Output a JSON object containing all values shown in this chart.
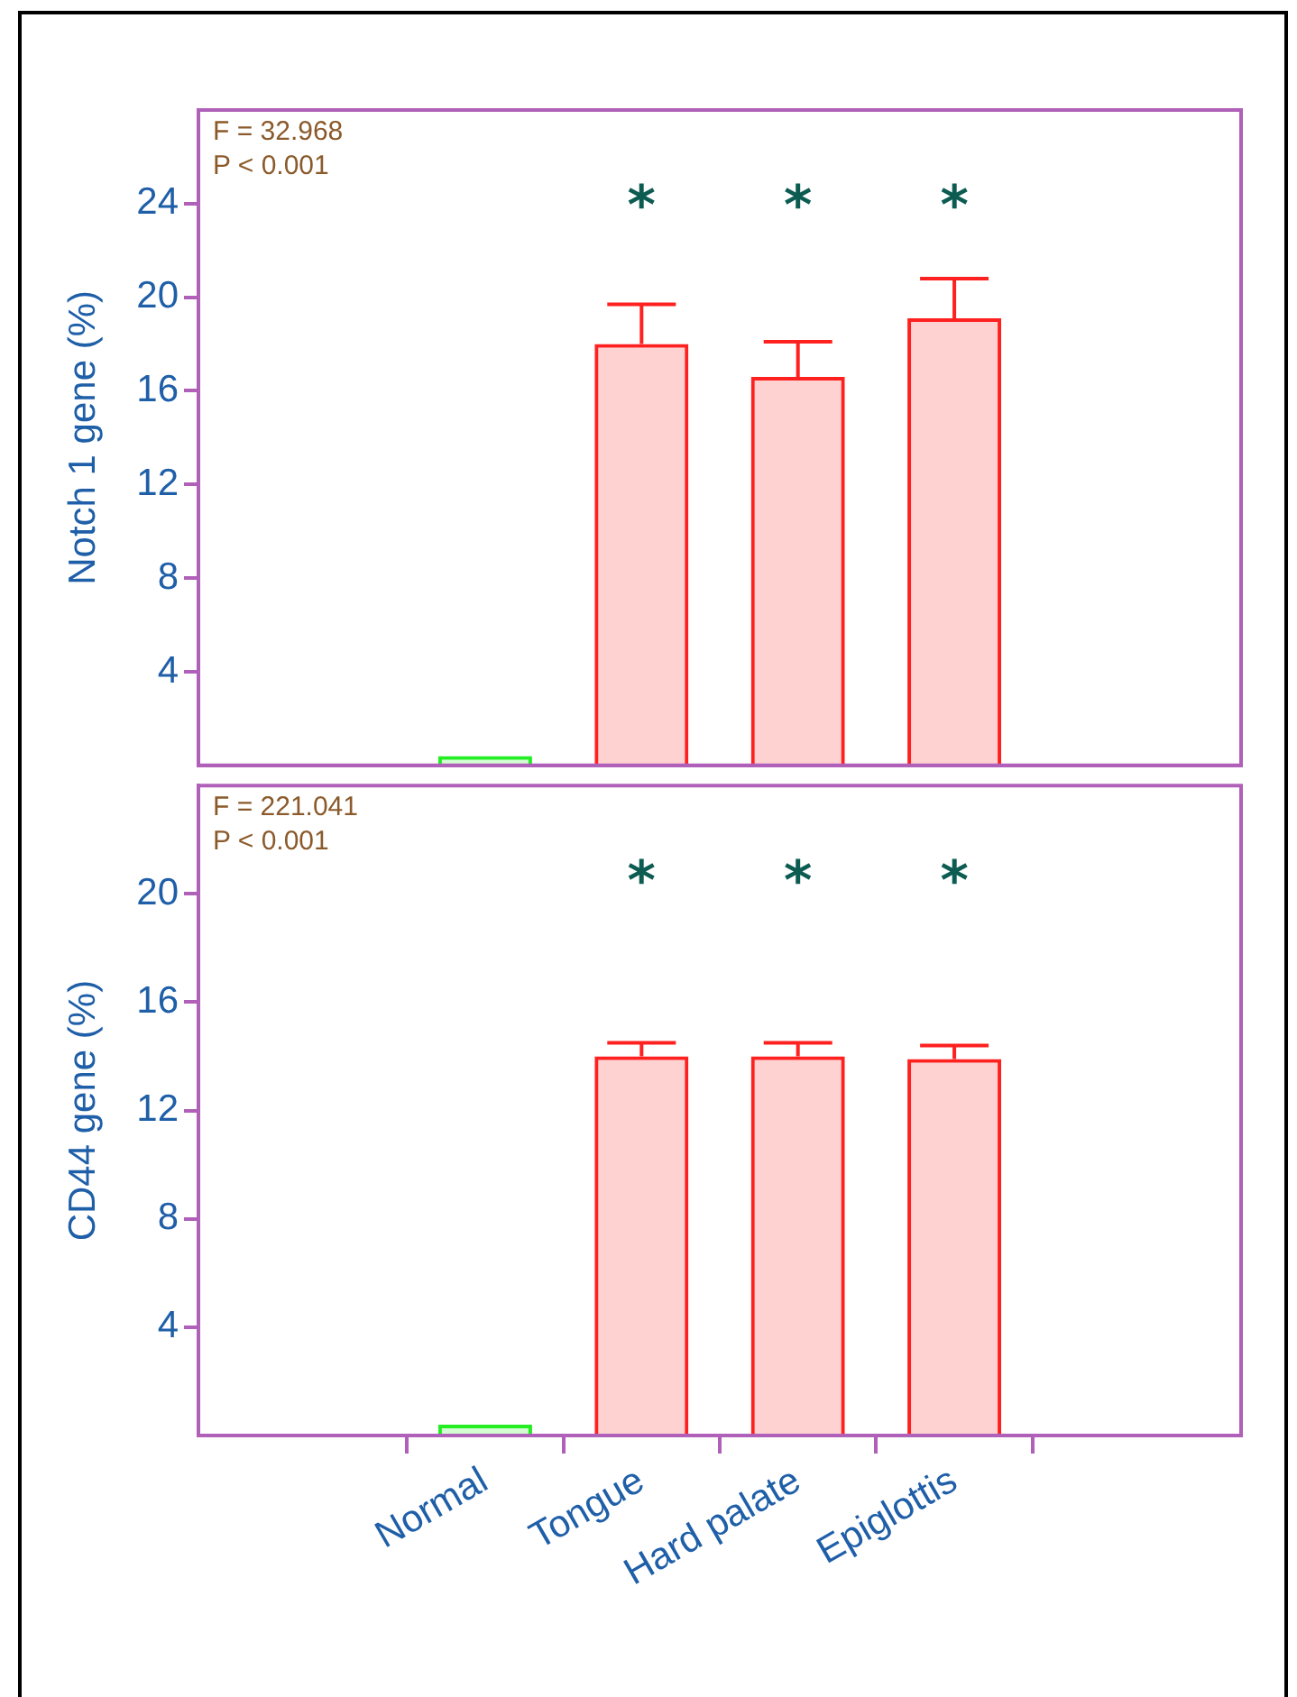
{
  "chart_data": [
    {
      "type": "bar",
      "ylabel": "Notch 1 gene (%)",
      "categories": [
        null,
        null,
        null,
        null
      ],
      "values": [
        0.4,
        18.0,
        16.6,
        19.1
      ],
      "colors": [
        "#22ee22",
        "#ff2020",
        "#ff2020",
        "#ff2020"
      ],
      "errors": [
        null,
        [
          18.0,
          19.7
        ],
        [
          16.6,
          18.1
        ],
        [
          19.1,
          20.8
        ]
      ],
      "ylim": [
        0,
        28
      ],
      "yticks": [
        4,
        8,
        12,
        16,
        20,
        24
      ],
      "tick_labels": "y",
      "annotations": [
        "F = 32.968",
        "P < 0.001",
        "*",
        "*",
        "*"
      ]
    },
    {
      "type": "bar",
      "ylabel": "CD44 gene (%)",
      "categories": [
        "Normal",
        "Tongue",
        "Hard palate",
        "Epiglottis"
      ],
      "values": [
        0.4,
        14.0,
        14.0,
        13.9
      ],
      "colors": [
        "#22ee22",
        "#ff2020",
        "#ff2020",
        "#ff2020"
      ],
      "errors": [
        null,
        [
          14.0,
          14.5
        ],
        [
          14.0,
          14.5
        ],
        [
          13.9,
          14.4
        ]
      ],
      "ylim": [
        0,
        24
      ],
      "yticks": [
        4,
        8,
        12,
        16,
        20
      ],
      "annotations": [
        "F = 221.041",
        "P < 0.001",
        "*",
        "*",
        "*"
      ]
    }
  ]
}
